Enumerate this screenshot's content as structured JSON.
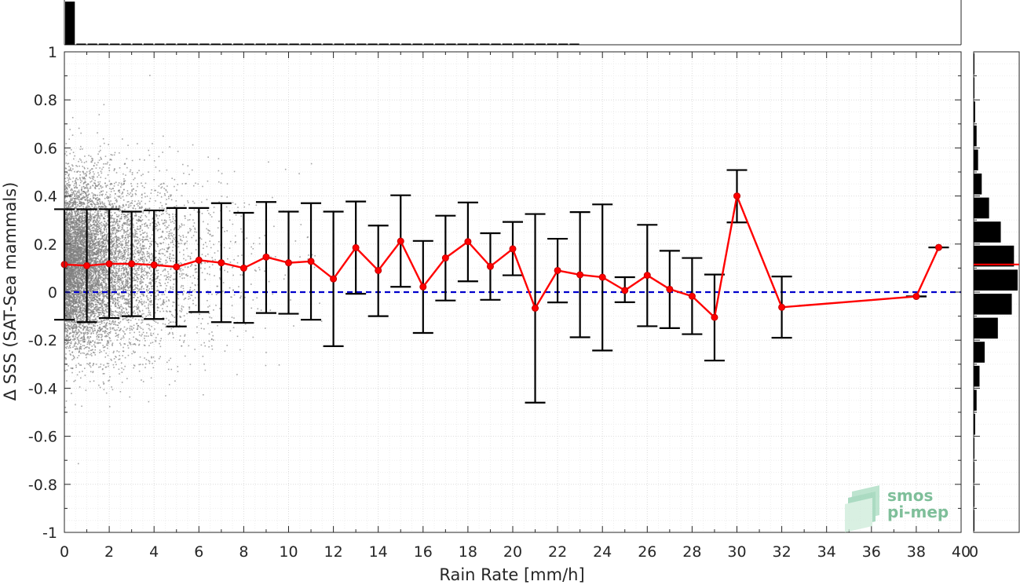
{
  "chart_data": {
    "type": "scatter",
    "xlabel": "Rain Rate [mm/h]",
    "ylabel": "Δ SSS (SAT-Sea mammals)",
    "xlim": [
      0,
      40
    ],
    "ylim": [
      -1,
      1
    ],
    "x_ticks": [
      "0",
      "2",
      "4",
      "6",
      "8",
      "10",
      "12",
      "14",
      "16",
      "18",
      "20",
      "22",
      "24",
      "26",
      "28",
      "30",
      "32",
      "34",
      "36",
      "38",
      "40"
    ],
    "y_ticks": [
      "-1",
      "-0.8",
      "-0.6",
      "-0.4",
      "-0.2",
      "0",
      "0.2",
      "0.4",
      "0.6",
      "0.8",
      "1"
    ],
    "grid": true,
    "reference_line": {
      "y": 0,
      "style": "dashed",
      "color": "#0000cc"
    },
    "series": [
      {
        "kind": "binned-mean",
        "color": "#ff0000",
        "x": [
          0,
          1,
          2,
          3,
          4,
          5,
          6,
          7,
          8,
          9,
          10,
          11,
          12,
          13,
          14,
          15,
          16,
          17,
          18,
          19,
          20,
          21,
          22,
          23,
          24,
          25,
          26,
          27,
          28,
          29,
          30,
          32,
          38,
          39
        ],
        "mean": [
          0.115,
          0.11,
          0.118,
          0.118,
          0.113,
          0.105,
          0.133,
          0.122,
          0.1,
          0.146,
          0.122,
          0.128,
          0.055,
          0.185,
          0.09,
          0.212,
          0.022,
          0.142,
          0.21,
          0.107,
          0.18,
          -0.067,
          0.09,
          0.072,
          0.062,
          0.007,
          0.07,
          0.012,
          -0.017,
          -0.105,
          0.4,
          -0.063,
          -0.018,
          0.186
        ],
        "err_low": [
          -0.115,
          -0.125,
          -0.108,
          -0.1,
          -0.112,
          -0.143,
          -0.083,
          -0.125,
          -0.128,
          -0.087,
          -0.09,
          -0.115,
          -0.225,
          -0.007,
          -0.1,
          0.022,
          -0.17,
          -0.035,
          0.045,
          -0.032,
          0.07,
          -0.46,
          -0.043,
          -0.188,
          -0.243,
          -0.042,
          -0.142,
          -0.15,
          -0.175,
          -0.285,
          0.29,
          -0.19,
          -0.018,
          0.186
        ],
        "err_high": [
          0.345,
          0.345,
          0.345,
          0.335,
          0.34,
          0.35,
          0.35,
          0.37,
          0.33,
          0.375,
          0.335,
          0.37,
          0.335,
          0.377,
          0.277,
          0.403,
          0.213,
          0.318,
          0.373,
          0.245,
          0.292,
          0.325,
          0.222,
          0.333,
          0.365,
          0.062,
          0.28,
          0.172,
          0.142,
          0.073,
          0.508,
          0.065,
          -0.018,
          0.186
        ]
      }
    ],
    "scatter_cloud": {
      "color": "#808080",
      "description_points": "dense near x=0-6, sparse beyond"
    },
    "marginal_histograms": {
      "top": {
        "bin_edges_x": [
          0,
          0.5,
          1,
          1.5,
          2,
          2.5,
          3,
          3.5,
          4,
          4.5,
          5,
          5.5,
          6,
          6.5,
          7,
          7.5,
          8,
          8.5,
          9,
          9.5,
          10,
          10.5,
          11,
          11.5,
          12,
          12.5,
          13,
          13.5,
          14,
          14.5,
          15,
          15.5,
          16,
          16.5,
          17,
          17.5,
          18,
          18.5,
          19,
          19.5,
          20,
          20.5,
          21,
          21.5,
          22,
          22.5,
          23
        ],
        "counts": [
          100,
          1.5,
          1.5,
          1.2,
          1.3,
          1,
          1,
          1,
          1,
          1,
          1,
          1,
          1,
          1,
          1,
          1,
          1,
          1,
          1,
          1,
          1,
          1,
          1,
          1,
          1,
          1,
          1,
          1,
          1,
          1,
          1,
          1,
          1,
          1,
          1,
          1,
          1,
          1,
          1,
          1,
          1,
          1,
          1,
          1,
          1,
          1
        ]
      },
      "right": {
        "bins_y": [
          1,
          0.9,
          0.8,
          0.7,
          0.6,
          0.5,
          0.4,
          0.3,
          0.2,
          0.1,
          0,
          -0.1,
          -0.2,
          -0.3,
          -0.4,
          -0.5,
          -0.6,
          -0.7,
          -0.8,
          -0.9,
          -1
        ],
        "counts": [
          0.5,
          1,
          2,
          4,
          6,
          11,
          21,
          37,
          55,
          60,
          52,
          33,
          15,
          8,
          4,
          2,
          1,
          0.5,
          0.3,
          0.2
        ],
        "median_line": 0.115,
        "median_color": "#ff0000"
      }
    },
    "logo": {
      "line1": "smos",
      "line2": "pi-mep"
    }
  }
}
